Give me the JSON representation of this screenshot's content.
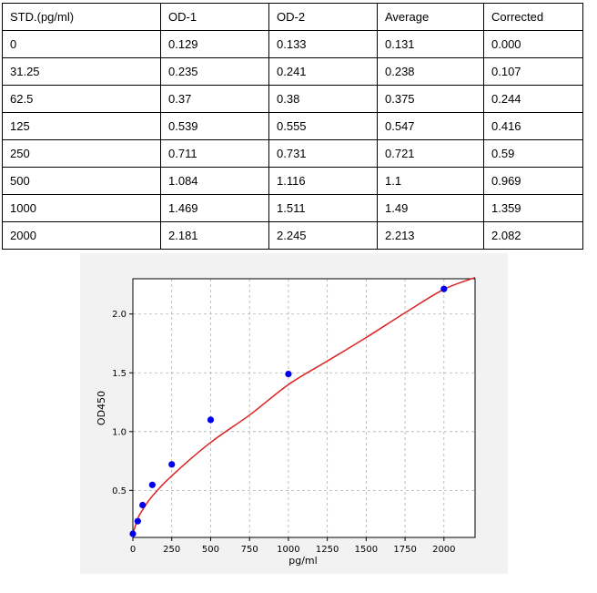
{
  "table": {
    "headers": [
      "STD.(pg/ml)",
      "OD-1",
      "OD-2",
      "Average",
      "Corrected"
    ],
    "rows": [
      [
        "0",
        "0.129",
        "0.133",
        "0.131",
        "0.000"
      ],
      [
        "31.25",
        "0.235",
        "0.241",
        "0.238",
        "0.107"
      ],
      [
        "62.5",
        "0.37",
        "0.38",
        "0.375",
        "0.244"
      ],
      [
        "125",
        "0.539",
        "0.555",
        "0.547",
        "0.416"
      ],
      [
        "250",
        "0.711",
        "0.731",
        "0.721",
        "0.59"
      ],
      [
        "500",
        "1.084",
        "1.116",
        "1.1",
        "0.969"
      ],
      [
        "1000",
        "1.469",
        "1.511",
        "1.49",
        "1.359"
      ],
      [
        "2000",
        "2.181",
        "2.245",
        "2.213",
        "2.082"
      ]
    ]
  },
  "chart_data": {
    "type": "scatter",
    "title": "",
    "xlabel": "pg/ml",
    "ylabel": "OD450",
    "xlim": [
      0,
      2200
    ],
    "ylim": [
      0.1,
      2.3
    ],
    "x_ticks": [
      0,
      250,
      500,
      750,
      1000,
      1250,
      1500,
      1750,
      2000
    ],
    "y_ticks": [
      0.5,
      1.0,
      1.5,
      2.0
    ],
    "x_tick_labels": [
      "0",
      "250",
      "500",
      "750",
      "1000",
      "1250",
      "1500",
      "1750",
      "2000"
    ],
    "y_tick_labels": [
      "0.5",
      "1.0",
      "1.5",
      "2.0"
    ],
    "grid": true,
    "series": [
      {
        "kind": "points",
        "x": [
          0,
          31.25,
          62.5,
          125,
          250,
          500,
          1000,
          2000
        ],
        "y": [
          0.131,
          0.238,
          0.375,
          0.547,
          0.721,
          1.1,
          1.49,
          2.213
        ],
        "color": "#0000ee"
      },
      {
        "kind": "fitted-curve",
        "x": [
          0,
          31.25,
          62.5,
          125,
          250,
          500,
          750,
          1000,
          1250,
          1500,
          1750,
          2000,
          2200
        ],
        "y": [
          0.13,
          0.26,
          0.335,
          0.452,
          0.624,
          0.908,
          1.14,
          1.4,
          1.6,
          1.8,
          2.01,
          2.21,
          2.31
        ],
        "color": "#dd2222"
      }
    ]
  }
}
